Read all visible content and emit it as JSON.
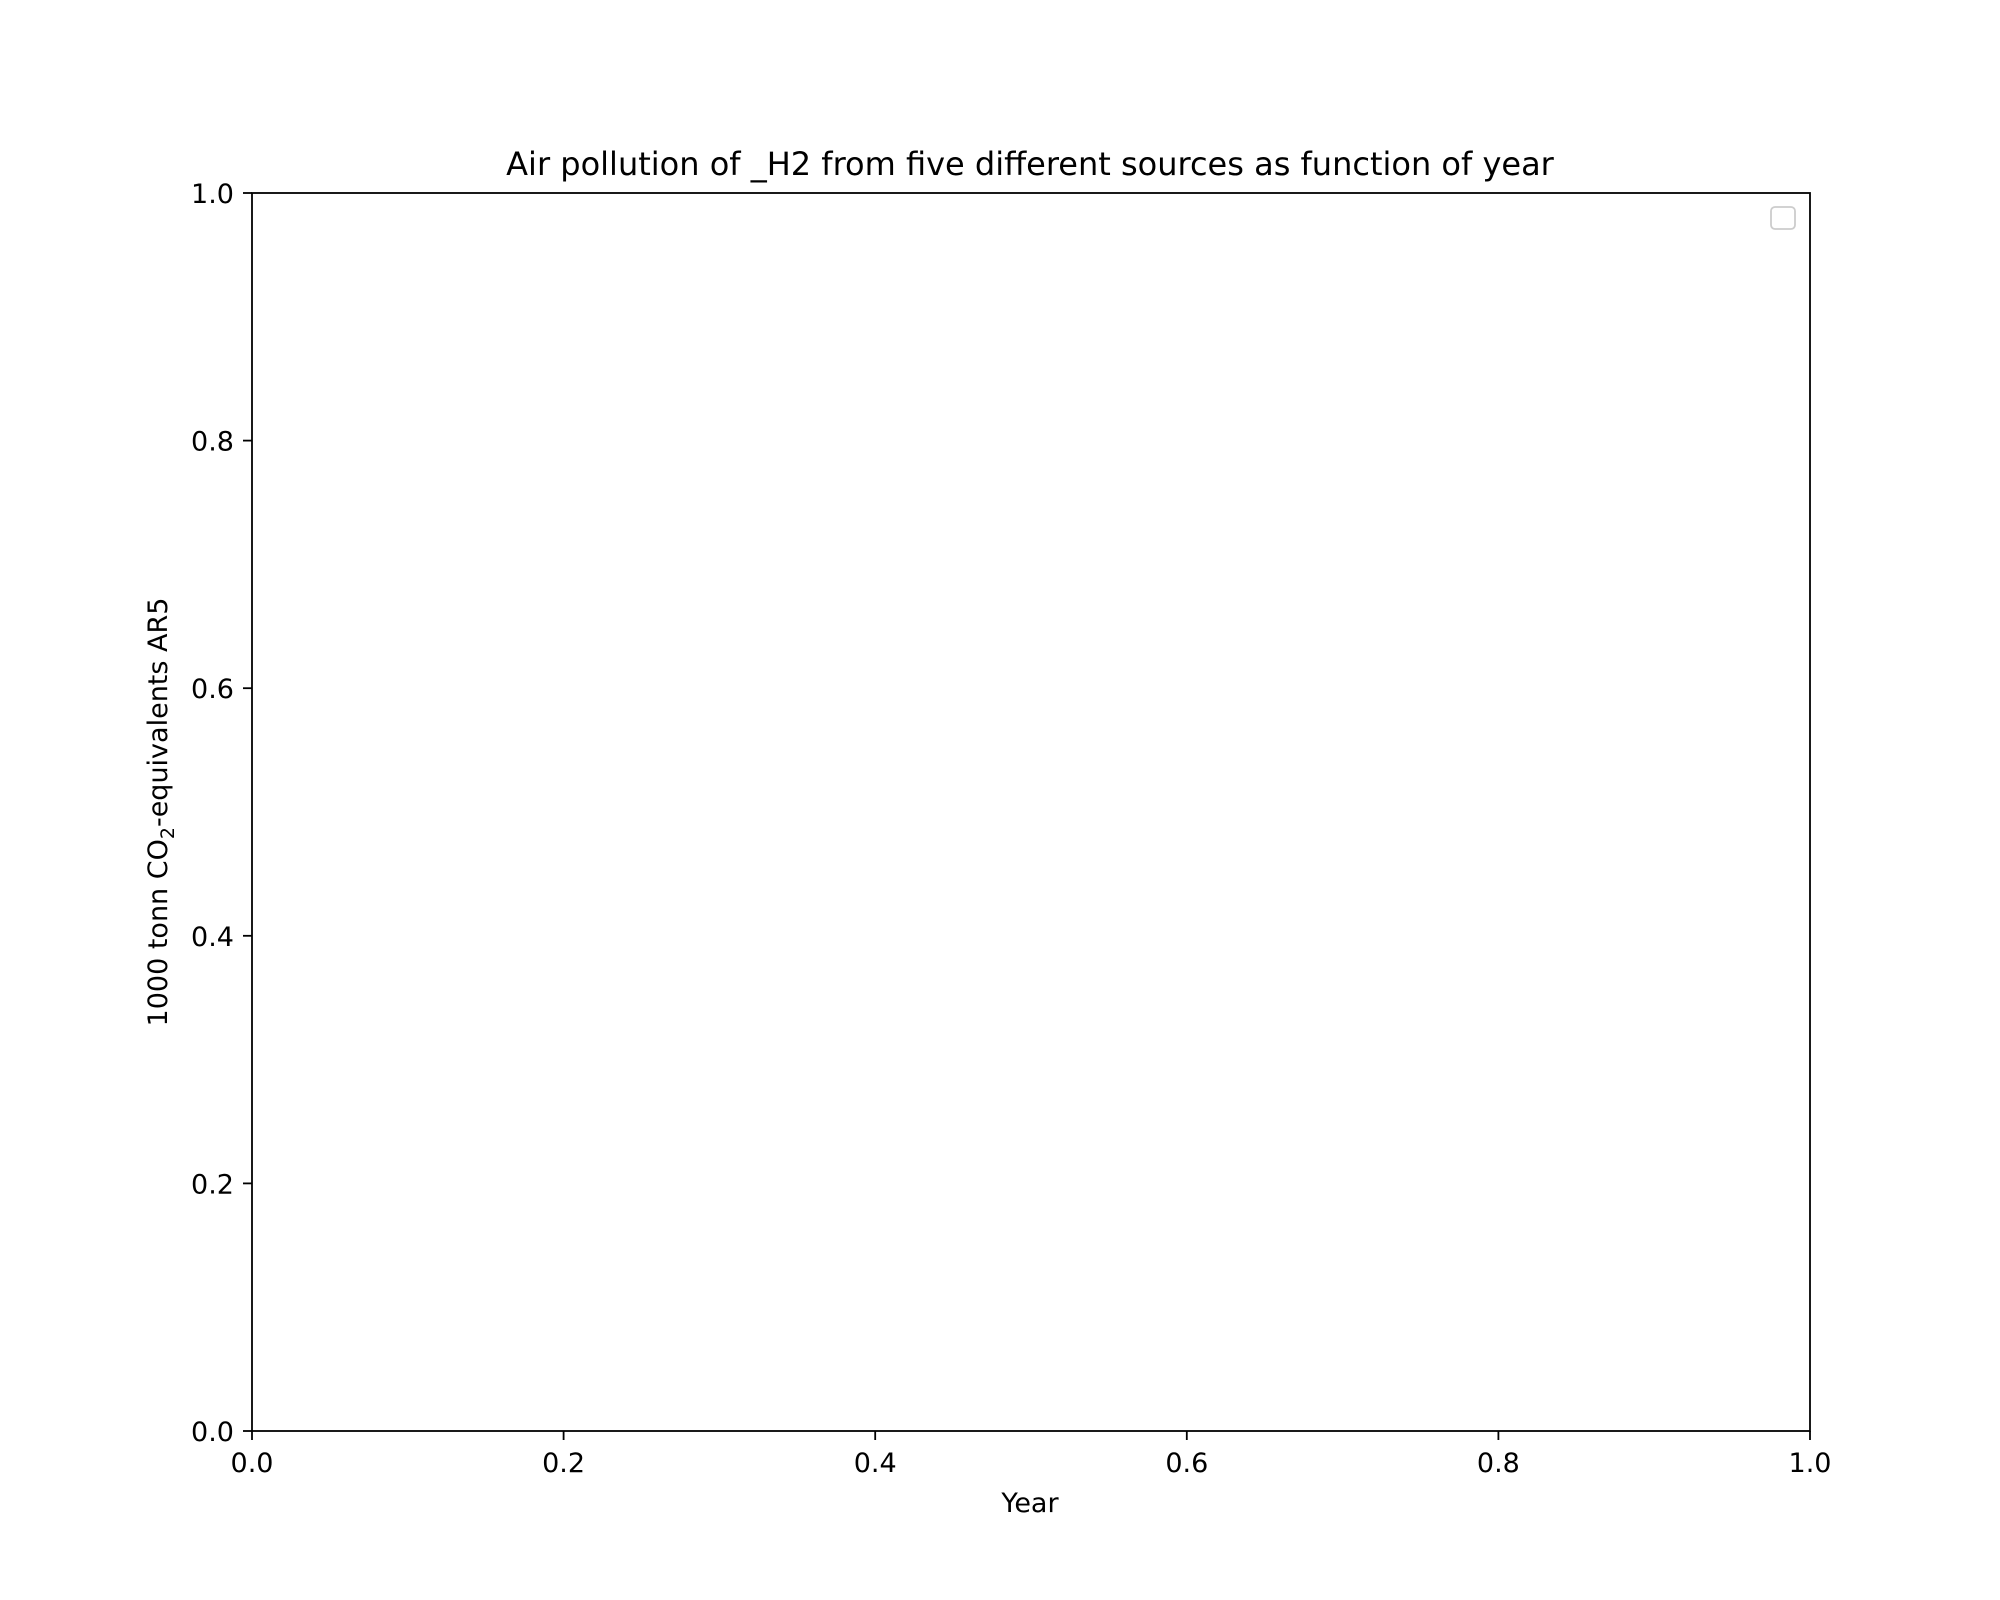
{
  "chart_data": {
    "type": "line",
    "title": "Air pollution of _H2 from five different sources as function of year",
    "xlabel": "Year",
    "ylabel_parts": {
      "before": "1000 tonn CO",
      "subscript": "2",
      "after": "-equivalents AR5"
    },
    "xlim": [
      0.0,
      1.0
    ],
    "ylim": [
      0.0,
      1.0
    ],
    "x_ticks": [
      "0.0",
      "0.2",
      "0.4",
      "0.6",
      "0.8",
      "1.0"
    ],
    "y_ticks": [
      "0.0",
      "0.2",
      "0.4",
      "0.6",
      "0.8",
      "1.0"
    ],
    "series": [],
    "grid": false,
    "legend": {
      "placement": "upper right",
      "entries": []
    },
    "colors": {
      "axes": "#000000",
      "legend_border": "#cccccc",
      "background": "#ffffff"
    }
  }
}
